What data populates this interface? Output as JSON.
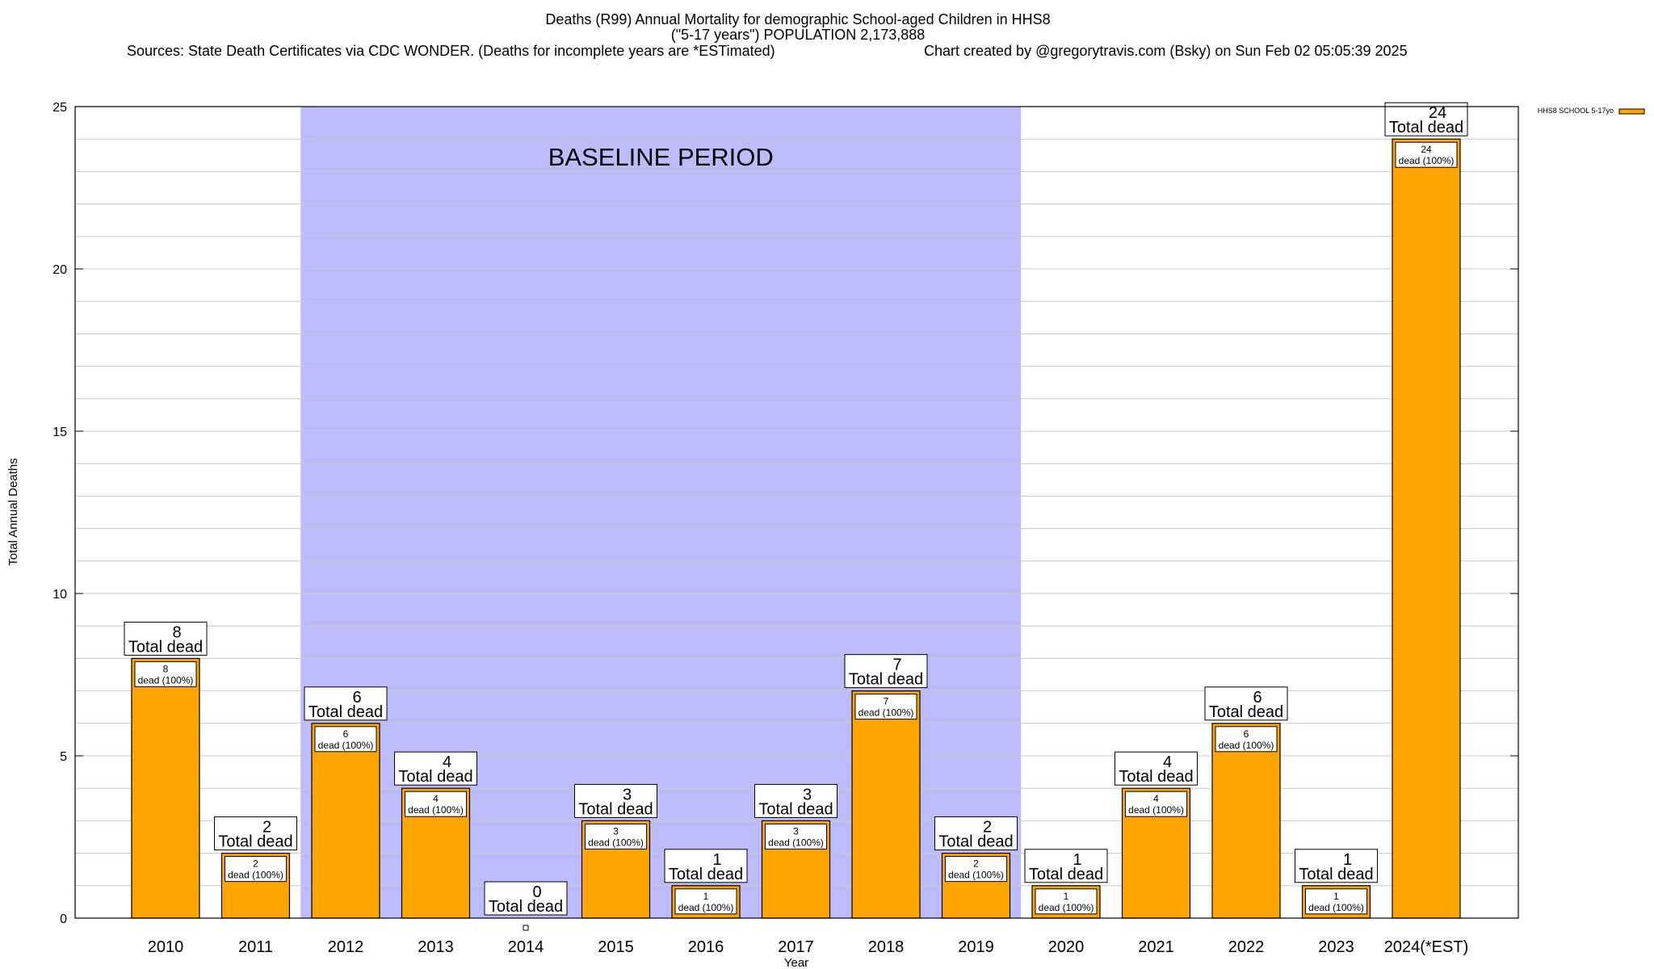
{
  "header": {
    "title_line1": "Deaths (R99) Annual Mortality for demographic School-aged Children in HHS8",
    "title_line2": "(\"5-17 years\") POPULATION 2,173,888",
    "sources": "Sources: State Death Certificates via CDC WONDER. (Deaths for incomplete years are *ESTimated)",
    "credit": "Chart created by @gregorytravis.com (Bsky) on Sun Feb 02 05:05:39 2025"
  },
  "chart_data": {
    "type": "bar",
    "title": "Deaths (R99) Annual Mortality for demographic School-aged Children in HHS8",
    "subtitle": "(\"5-17 years\") POPULATION 2,173,888",
    "xlabel": "Year",
    "ylabel": "Total Annual Deaths",
    "categories": [
      "2010",
      "2011",
      "2012",
      "2013",
      "2014",
      "2015",
      "2016",
      "2017",
      "2018",
      "2019",
      "2020",
      "2021",
      "2022",
      "2023",
      "2024(*EST)"
    ],
    "series": [
      {
        "name": "HHS8 SCHOOL 5-17yo",
        "values": [
          8,
          2,
          6,
          4,
          0,
          3,
          1,
          3,
          7,
          2,
          1,
          4,
          6,
          1,
          24
        ],
        "color": "#ffa500"
      }
    ],
    "ylim": [
      0,
      25
    ],
    "yticks": [
      0,
      5,
      10,
      15,
      20,
      25
    ],
    "grid": true,
    "legend": "top-right",
    "baseline_period": {
      "label": "BASELINE PERIOD",
      "from": "2012",
      "to": "2019",
      "color": "#bcbcfc"
    },
    "bar_label_total": "Total dead",
    "bar_label_inner": "dead (100%)"
  }
}
